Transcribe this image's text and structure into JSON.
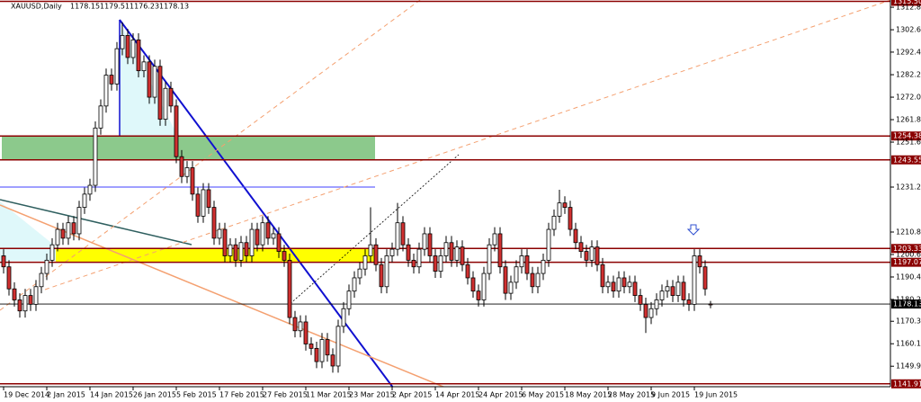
{
  "chart_data": {
    "type": "candlestick",
    "title": "XAUUSD,Daily",
    "categories": [
      "19 Dec 2014",
      null,
      null,
      null,
      null,
      null,
      null,
      null,
      "2 Jan 2015",
      null,
      null,
      null,
      null,
      null,
      null,
      null,
      "14 Jan 2015",
      null,
      null,
      null,
      null,
      null,
      null,
      null,
      "26 Jan 2015",
      null,
      null,
      null,
      null,
      null,
      null,
      null,
      "5 Feb 2015",
      null,
      null,
      null,
      null,
      null,
      null,
      null,
      "17 Feb 2015",
      null,
      null,
      null,
      null,
      null,
      null,
      null,
      "27 Feb 2015",
      null,
      null,
      null,
      null,
      null,
      null,
      null,
      "11 Mar 2015",
      null,
      null,
      null,
      null,
      null,
      null,
      null,
      "23 Mar 2015",
      null,
      null,
      null,
      null,
      null,
      null,
      null,
      "2 Apr 2015",
      null,
      null,
      null,
      null,
      null,
      null,
      null,
      "14 Apr 2015",
      null,
      null,
      null,
      null,
      null,
      null,
      null,
      "24 Apr 2015",
      null,
      null,
      null,
      null,
      null,
      null,
      null,
      "6 May 2015",
      null,
      null,
      null,
      null,
      null,
      null,
      null,
      "18 May 2015",
      null,
      null,
      null,
      null,
      null,
      null,
      null,
      "28 May 2015",
      null,
      null,
      null,
      null,
      null,
      null,
      null,
      "9 Jun 2015",
      null,
      null,
      null,
      null,
      null,
      null,
      null,
      "19 Jun 2015",
      null,
      null,
      null
    ],
    "open": [
      1200,
      1195,
      1185,
      1180,
      1175,
      1182,
      1178,
      1186,
      1192,
      1198,
      1205,
      1212,
      1208,
      1215,
      1210,
      1222,
      1228,
      1232,
      1258,
      1268,
      1282,
      1278,
      1294,
      1300,
      1290,
      1298,
      1284,
      1288,
      1272,
      1286,
      1262,
      1276,
      1268,
      1245,
      1236,
      1240,
      1228,
      1218,
      1230,
      1222,
      1208,
      1212,
      1200,
      1205,
      1198,
      1206,
      1200,
      1212,
      1205,
      1215,
      1208,
      1210,
      1202,
      1198,
      1172,
      1166,
      1170,
      1160,
      1158,
      1152,
      1162,
      1155,
      1150,
      1168,
      1176,
      1184,
      1190,
      1194,
      1200,
      1205,
      1196,
      1186,
      1200,
      1203,
      1215,
      1205,
      1198,
      1195,
      1203,
      1210,
      1200,
      1193,
      1200,
      1206,
      1198,
      1204,
      1196,
      1190,
      1184,
      1180,
      1192,
      1205,
      1210,
      1195,
      1183,
      1188,
      1195,
      1200,
      1192,
      1186,
      1192,
      1198,
      1212,
      1218,
      1224,
      1222,
      1212,
      1206,
      1202,
      1198,
      1204,
      1196,
      1186,
      1188,
      1184,
      1190,
      1186,
      1188,
      1182,
      1178,
      1172,
      1176,
      1180,
      1184,
      1186,
      1182,
      1188,
      1180,
      1178,
      1200,
      1195,
      1178.15
    ],
    "high": [
      1203,
      1198,
      1188,
      1183,
      1185,
      1185,
      1189,
      1195,
      1201,
      1208,
      1215,
      1215,
      1218,
      1218,
      1225,
      1231,
      1235,
      1261,
      1271,
      1285,
      1285,
      1297,
      1306,
      1303,
      1301,
      1301,
      1291,
      1291,
      1289,
      1289,
      1279,
      1279,
      1271,
      1248,
      1243,
      1243,
      1231,
      1233,
      1233,
      1225,
      1215,
      1215,
      1208,
      1208,
      1209,
      1209,
      1215,
      1215,
      1218,
      1218,
      1213,
      1213,
      1205,
      1201,
      1175,
      1173,
      1173,
      1163,
      1161,
      1165,
      1165,
      1158,
      1171,
      1179,
      1187,
      1193,
      1197,
      1203,
      1222,
      1208,
      1199,
      1203,
      1206,
      1224,
      1218,
      1208,
      1201,
      1206,
      1213,
      1213,
      1203,
      1203,
      1209,
      1209,
      1207,
      1207,
      1199,
      1193,
      1187,
      1195,
      1208,
      1213,
      1213,
      1198,
      1191,
      1198,
      1203,
      1203,
      1195,
      1195,
      1201,
      1215,
      1221,
      1230,
      1227,
      1225,
      1215,
      1209,
      1205,
      1207,
      1207,
      1199,
      1191,
      1191,
      1193,
      1193,
      1191,
      1191,
      1185,
      1181,
      1179,
      1183,
      1187,
      1189,
      1189,
      1191,
      1191,
      1183,
      1203,
      1203,
      1198,
      1179.51
    ],
    "low": [
      1192,
      1182,
      1177,
      1172,
      1172,
      1175,
      1175,
      1183,
      1189,
      1195,
      1202,
      1205,
      1205,
      1207,
      1207,
      1219,
      1225,
      1229,
      1255,
      1265,
      1275,
      1275,
      1291,
      1287,
      1287,
      1281,
      1281,
      1269,
      1269,
      1259,
      1259,
      1265,
      1242,
      1233,
      1233,
      1225,
      1215,
      1215,
      1219,
      1205,
      1205,
      1197,
      1197,
      1195,
      1195,
      1197,
      1197,
      1202,
      1202,
      1205,
      1205,
      1199,
      1195,
      1169,
      1163,
      1163,
      1157,
      1155,
      1149,
      1149,
      1152,
      1147,
      1147,
      1165,
      1173,
      1181,
      1187,
      1191,
      1197,
      1193,
      1183,
      1183,
      1197,
      1200,
      1202,
      1195,
      1192,
      1192,
      1200,
      1197,
      1190,
      1190,
      1197,
      1195,
      1195,
      1193,
      1187,
      1181,
      1177,
      1177,
      1189,
      1202,
      1192,
      1180,
      1180,
      1185,
      1192,
      1189,
      1183,
      1183,
      1189,
      1195,
      1209,
      1215,
      1219,
      1209,
      1203,
      1199,
      1195,
      1195,
      1193,
      1183,
      1183,
      1181,
      1181,
      1183,
      1183,
      1179,
      1175,
      1165,
      1169,
      1173,
      1177,
      1181,
      1179,
      1179,
      1177,
      1175,
      1175,
      1192,
      1182,
      1176.23
    ],
    "close": [
      1195,
      1185,
      1180,
      1175,
      1182,
      1178,
      1186,
      1192,
      1198,
      1205,
      1212,
      1208,
      1215,
      1210,
      1222,
      1228,
      1232,
      1258,
      1268,
      1282,
      1278,
      1294,
      1300,
      1290,
      1298,
      1284,
      1288,
      1272,
      1286,
      1262,
      1276,
      1268,
      1245,
      1236,
      1240,
      1228,
      1218,
      1230,
      1222,
      1208,
      1212,
      1200,
      1205,
      1198,
      1206,
      1200,
      1212,
      1205,
      1215,
      1208,
      1210,
      1202,
      1198,
      1172,
      1166,
      1170,
      1160,
      1158,
      1152,
      1162,
      1155,
      1150,
      1168,
      1176,
      1184,
      1190,
      1194,
      1200,
      1205,
      1196,
      1186,
      1200,
      1203,
      1215,
      1205,
      1198,
      1195,
      1203,
      1210,
      1200,
      1193,
      1200,
      1206,
      1198,
      1204,
      1196,
      1190,
      1184,
      1180,
      1192,
      1205,
      1210,
      1195,
      1183,
      1188,
      1195,
      1200,
      1192,
      1186,
      1192,
      1198,
      1212,
      1218,
      1224,
      1222,
      1212,
      1206,
      1202,
      1198,
      1204,
      1196,
      1186,
      1188,
      1184,
      1190,
      1186,
      1188,
      1182,
      1178,
      1172,
      1176,
      1180,
      1184,
      1186,
      1182,
      1188,
      1180,
      1178,
      1200,
      1195,
      1185,
      1178.13
    ],
    "bull_color": "#ffffff",
    "bear_color": "#d03030",
    "ylim": [
      1140.6,
      1316.1
    ],
    "yticks": [
      {
        "value": 1312.8,
        "label": "1312.80"
      },
      {
        "value": 1302.6,
        "label": "1302.60"
      },
      1292.45,
      {
        "value": 1282.2,
        "label": "1282.20"
      },
      {
        "value": 1272,
        "label": "1272.00"
      },
      {
        "value": 1261.8,
        "label": "1261.80"
      },
      {
        "value": 1251.6,
        "label": "1251.60"
      },
      {
        "value": 1231.2,
        "label": "1231.20"
      },
      {
        "value": 1210.8,
        "label": "1210.80"
      },
      {
        "value": 1200.6,
        "label": "1200.60"
      },
      {
        "value": 1190.4,
        "label": "1190.40"
      },
      {
        "value": 1180.2,
        "label": "1180.20"
      },
      {
        "value": 1170.3,
        "label": "1170.30"
      },
      {
        "value": 1160.1,
        "label": "1160.10"
      },
      {
        "value": 1149.9,
        "label": "1149.90"
      }
    ],
    "levels": [
      {
        "value": 1315.5,
        "label": "1315.50"
      },
      1254.38,
      1243.55,
      1203.33,
      1197.07,
      1141.91
    ],
    "level_color": "#8b0000",
    "zone_colors": [
      "#8cc98c",
      "#ffff00"
    ]
  }
}
